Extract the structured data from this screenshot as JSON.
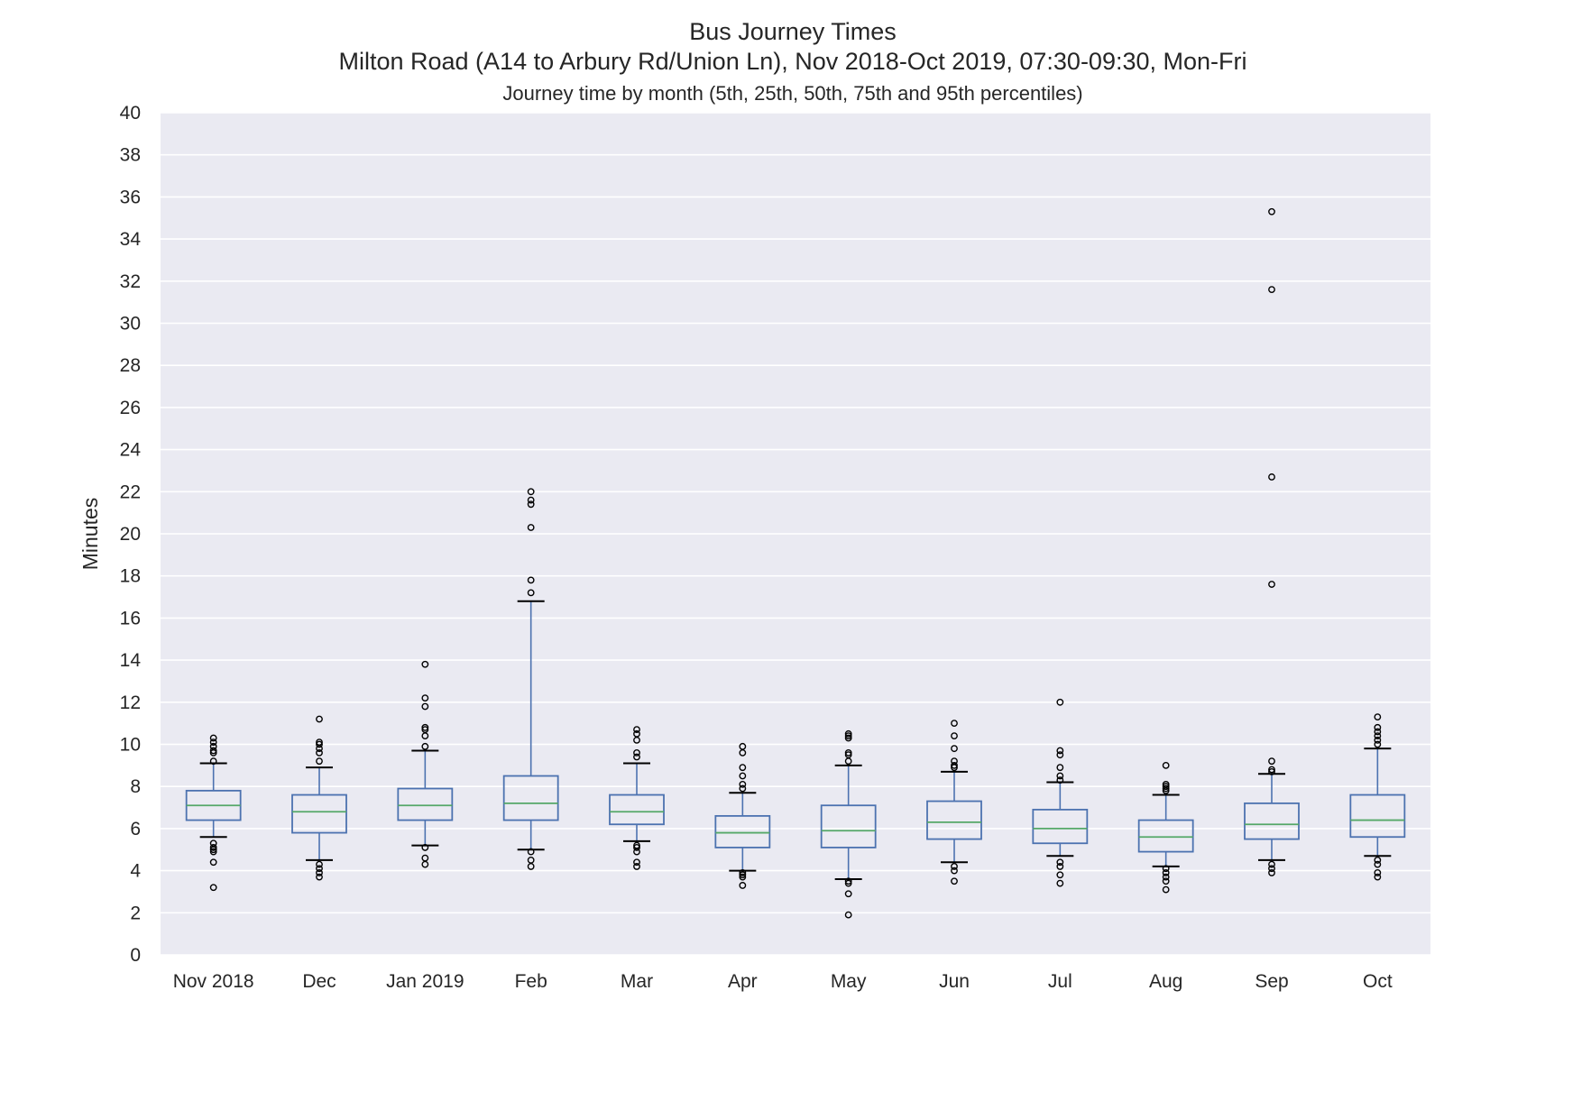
{
  "chart_data": {
    "type": "box",
    "title": "Bus Journey Times",
    "subtitle": "Milton Road (A14 to Arbury Rd/Union Ln), Nov 2018-Oct 2019, 07:30-09:30, Mon-Fri",
    "description": "Journey time by month (5th, 25th, 50th, 75th and 95th percentiles)",
    "xlabel": "",
    "ylabel": "Minutes",
    "ylim": [
      0,
      40
    ],
    "yticks": [
      0,
      2,
      4,
      6,
      8,
      10,
      12,
      14,
      16,
      18,
      20,
      22,
      24,
      26,
      28,
      30,
      32,
      34,
      36,
      38,
      40
    ],
    "grid": true,
    "colors": {
      "plot_background": "#eaeaf2",
      "grid": "#ffffff",
      "box": "#4c72b0",
      "median": "#55a868",
      "whisker_cap": "#000000",
      "outlier": "#000000"
    },
    "categories": [
      "Nov 2018",
      "Dec",
      "Jan 2019",
      "Feb",
      "Mar",
      "Apr",
      "May",
      "Jun",
      "Jul",
      "Aug",
      "Sep",
      "Oct"
    ],
    "boxes": [
      {
        "p5": 5.6,
        "q1": 6.4,
        "median": 7.1,
        "q3": 7.8,
        "p95": 9.1,
        "outliers": [
          3.2,
          4.4,
          4.9,
          5.0,
          5.1,
          5.3,
          9.2,
          9.6,
          9.7,
          9.9,
          10.1,
          10.3
        ]
      },
      {
        "p5": 4.5,
        "q1": 5.8,
        "median": 6.8,
        "q3": 7.6,
        "p95": 8.9,
        "outliers": [
          3.7,
          3.9,
          4.1,
          4.3,
          9.2,
          9.6,
          9.8,
          10.0,
          10.1,
          11.2
        ]
      },
      {
        "p5": 5.2,
        "q1": 6.4,
        "median": 7.1,
        "q3": 7.9,
        "p95": 9.7,
        "outliers": [
          4.3,
          4.6,
          5.1,
          9.9,
          10.4,
          10.7,
          10.8,
          11.8,
          12.2,
          13.8
        ]
      },
      {
        "p5": 5.0,
        "q1": 6.4,
        "median": 7.2,
        "q3": 8.5,
        "p95": 16.8,
        "outliers": [
          4.2,
          4.5,
          4.9,
          17.2,
          17.8,
          20.3,
          21.4,
          21.6,
          22.0
        ]
      },
      {
        "p5": 5.4,
        "q1": 6.2,
        "median": 6.8,
        "q3": 7.6,
        "p95": 9.1,
        "outliers": [
          4.2,
          4.4,
          4.9,
          5.1,
          5.2,
          9.4,
          9.6,
          10.2,
          10.5,
          10.7
        ]
      },
      {
        "p5": 4.0,
        "q1": 5.1,
        "median": 5.8,
        "q3": 6.6,
        "p95": 7.7,
        "outliers": [
          3.3,
          3.7,
          3.8,
          3.9,
          7.9,
          8.1,
          8.5,
          8.9,
          9.6,
          9.9
        ]
      },
      {
        "p5": 3.6,
        "q1": 5.1,
        "median": 5.9,
        "q3": 7.1,
        "p95": 9.0,
        "outliers": [
          1.9,
          2.9,
          3.4,
          3.5,
          9.2,
          9.5,
          9.6,
          10.3,
          10.4,
          10.5
        ]
      },
      {
        "p5": 4.4,
        "q1": 5.5,
        "median": 6.3,
        "q3": 7.3,
        "p95": 8.7,
        "outliers": [
          3.5,
          4.0,
          4.2,
          8.9,
          9.0,
          9.2,
          9.8,
          10.4,
          11.0
        ]
      },
      {
        "p5": 4.7,
        "q1": 5.3,
        "median": 6.0,
        "q3": 6.9,
        "p95": 8.2,
        "outliers": [
          3.4,
          3.8,
          4.2,
          4.4,
          8.3,
          8.5,
          8.9,
          9.5,
          9.7,
          12.0
        ]
      },
      {
        "p5": 4.2,
        "q1": 4.9,
        "median": 5.6,
        "q3": 6.4,
        "p95": 7.6,
        "outliers": [
          3.1,
          3.5,
          3.7,
          3.9,
          4.1,
          7.8,
          7.9,
          8.0,
          8.1,
          9.0
        ]
      },
      {
        "p5": 4.5,
        "q1": 5.5,
        "median": 6.2,
        "q3": 7.2,
        "p95": 8.6,
        "outliers": [
          3.9,
          4.1,
          4.3,
          8.7,
          8.8,
          9.2,
          17.6,
          22.7,
          31.6,
          35.3
        ]
      },
      {
        "p5": 4.7,
        "q1": 5.6,
        "median": 6.4,
        "q3": 7.6,
        "p95": 9.8,
        "outliers": [
          3.7,
          3.9,
          4.3,
          4.5,
          10.0,
          10.2,
          10.4,
          10.6,
          10.8,
          11.3
        ]
      }
    ]
  }
}
